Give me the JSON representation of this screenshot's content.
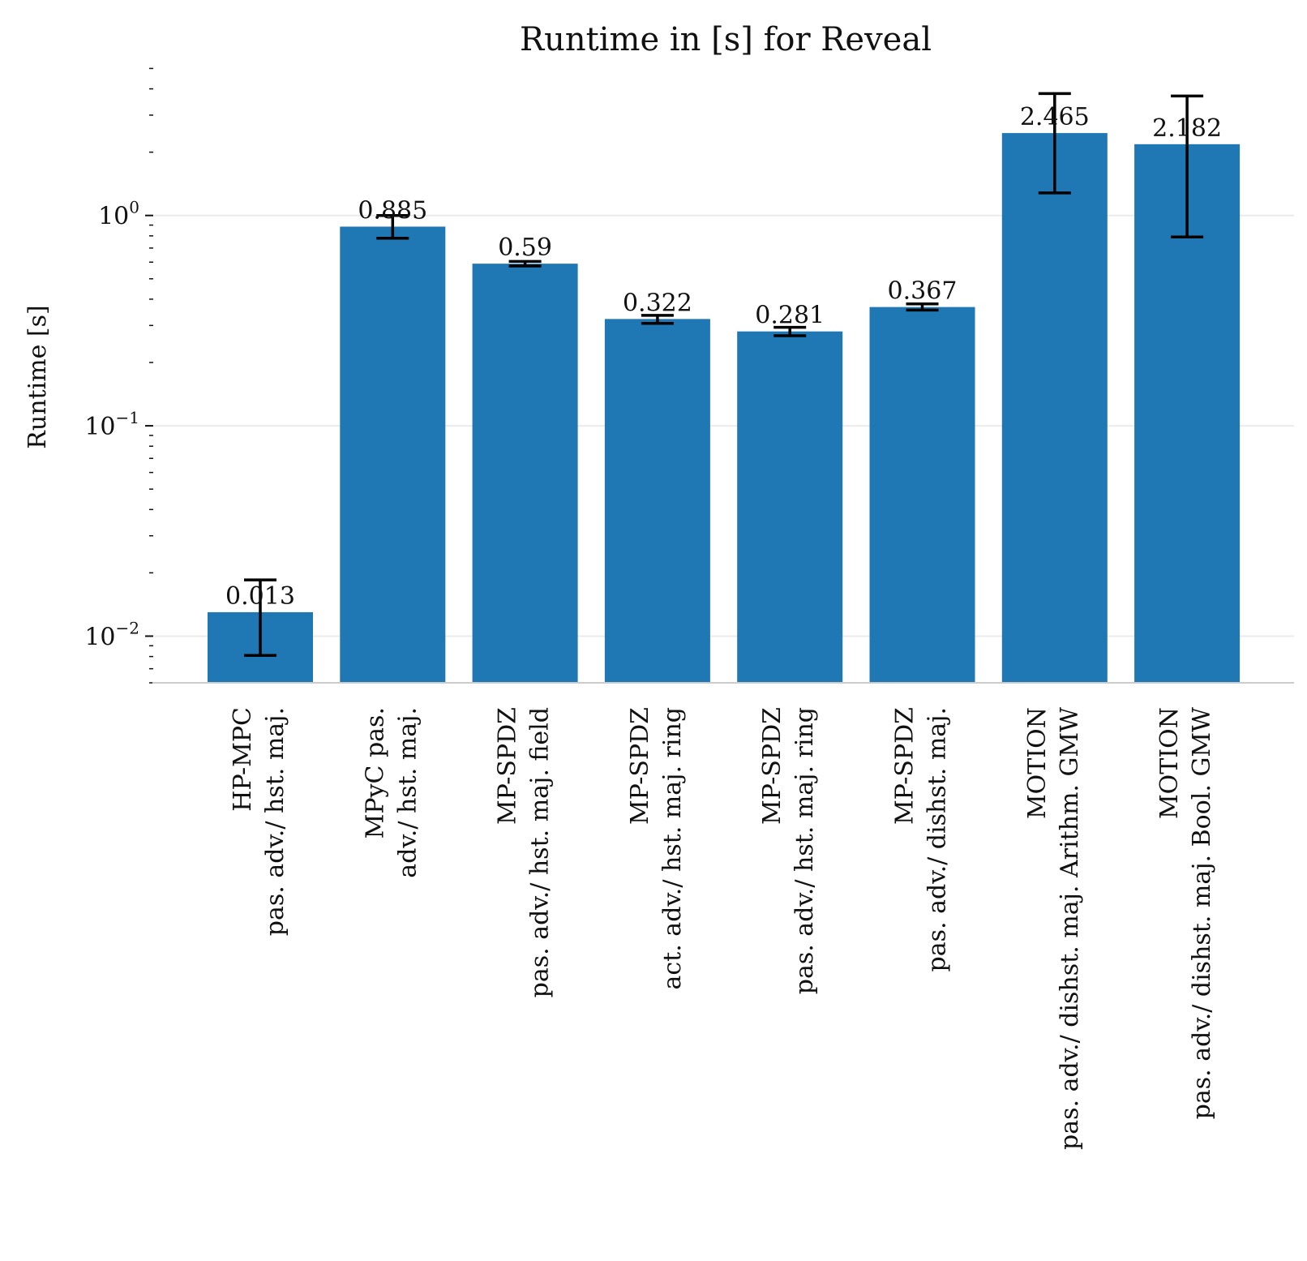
{
  "chart_data": {
    "type": "bar",
    "title": "Runtime in [s] for Reveal",
    "ylabel": "Runtime [s]",
    "xlabel": "",
    "yscale": "log",
    "ylim": [
      0.006,
      5.2
    ],
    "grid": "y-major",
    "yticks": [
      {
        "value": 0.01,
        "base": "10",
        "exp": "−2"
      },
      {
        "value": 0.1,
        "base": "10",
        "exp": "−1"
      },
      {
        "value": 1,
        "base": "10",
        "exp": "0"
      }
    ],
    "bar_color": "#1f77b4",
    "categories": [
      {
        "line1": "HP-MPC",
        "line2": "pas. adv./ hst. maj."
      },
      {
        "line1": "MPyC pas.",
        "line2": "adv./ hst. maj."
      },
      {
        "line1": "MP-SPDZ",
        "line2": "pas. adv./ hst. maj. field"
      },
      {
        "line1": "MP-SPDZ",
        "line2": "act. adv./ hst. maj. ring"
      },
      {
        "line1": "MP-SPDZ",
        "line2": "pas. adv./ hst. maj. ring"
      },
      {
        "line1": "MP-SPDZ",
        "line2": "pas. adv./ dishst. maj."
      },
      {
        "line1": "MOTION",
        "line2": "pas. adv./ dishst. maj. Arithm. GMW"
      },
      {
        "line1": "MOTION",
        "line2": "pas. adv./ dishst. maj. Bool. GMW"
      }
    ],
    "values": [
      0.013,
      0.885,
      0.59,
      0.322,
      0.281,
      0.367,
      2.465,
      2.182
    ],
    "value_labels": [
      "0.013",
      "0.885",
      "0.59",
      "0.322",
      "0.281",
      "0.367",
      "2.465",
      "2.182"
    ],
    "error_low": [
      0.0081,
      0.78,
      0.575,
      0.307,
      0.268,
      0.355,
      1.28,
      0.79
    ],
    "error_high": [
      0.0185,
      1.0,
      0.605,
      0.335,
      0.294,
      0.38,
      3.8,
      3.7
    ]
  }
}
